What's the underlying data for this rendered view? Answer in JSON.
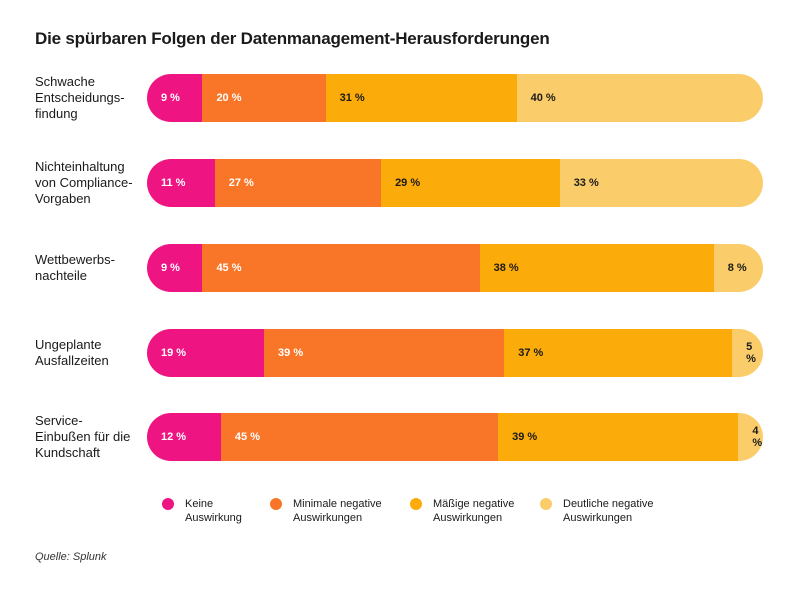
{
  "chart_data": {
    "type": "bar",
    "orientation": "horizontal",
    "stacked": true,
    "title": "Die spürbaren Folgen der Datenmanagement-Herausforderungen",
    "categories": [
      "Schwache Entscheidungs-findung",
      "Nichteinhaltung von Compliance-Vorgaben",
      "Wettbewerbs-nachteile",
      "Ungeplante Ausfallzeiten",
      "Service-Einbußen für die Kundschaft"
    ],
    "category_lines": [
      [
        "Schwache",
        "Entscheidungs-",
        "findung"
      ],
      [
        "Nichteinhaltung",
        "von Compliance-",
        "Vorgaben"
      ],
      [
        "Wettbewerbs-",
        "nachteile"
      ],
      [
        "Ungeplante",
        "Ausfallzeiten"
      ],
      [
        "Service-",
        "Einbußen für die",
        "Kundschaft"
      ]
    ],
    "series": [
      {
        "name": "Keine Auswirkung",
        "color": "#ee1583",
        "text_color": "#ffffff",
        "values": [
          9,
          11,
          9,
          19,
          12
        ]
      },
      {
        "name": "Minimale negative Auswirkungen",
        "color": "#f97628",
        "text_color": "#ffffff",
        "values": [
          20,
          27,
          45,
          39,
          45
        ]
      },
      {
        "name": "Mäßige negative Auswirkungen",
        "color": "#fbab0a",
        "text_color": "#1a1a1a",
        "values": [
          31,
          29,
          38,
          37,
          39
        ]
      },
      {
        "name": "Deutliche negative Auswirkungen",
        "color": "#fbcd6a",
        "text_color": "#1a1a1a",
        "values": [
          40,
          33,
          8,
          5,
          4
        ]
      }
    ],
    "legend_lines": [
      [
        "Keine",
        "Auswirkung"
      ],
      [
        "Minimale negative",
        "Auswirkungen"
      ],
      [
        "Mäßige negative",
        "Auswirkungen"
      ],
      [
        "Deutliche negative",
        "Auswirkungen"
      ]
    ],
    "value_suffix": " %",
    "xlim": [
      0,
      100
    ],
    "legend_position": "bottom",
    "grid": false
  },
  "source": "Quelle: Splunk"
}
